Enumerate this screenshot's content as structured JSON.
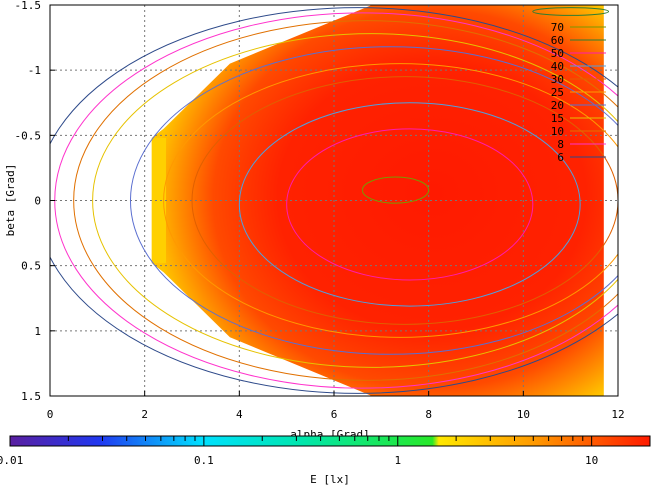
{
  "chart_data": {
    "type": "heatmap",
    "title": "",
    "xlabel": "alpha [Grad]",
    "ylabel": "beta [Grad]",
    "xlim": [
      0,
      12
    ],
    "ylim": [
      -1.5,
      1.5
    ],
    "y_inverted": true,
    "x_ticks": [
      "0",
      "2",
      "4",
      "6",
      "8",
      "10",
      "12"
    ],
    "y_ticks": [
      "-1.5",
      "-1",
      "-0.5",
      "0",
      "0.5",
      "1",
      "1.5"
    ],
    "grid": true,
    "legend_placement": "top-right",
    "contours": [
      {
        "level": "70",
        "color": "#7a9a00",
        "center": [
          7.3,
          -0.08
        ],
        "rx": 0.7,
        "ry": 0.1
      },
      {
        "level": "60",
        "color": "#2e7d32",
        "center": [
          11,
          -1.45
        ],
        "rx": 0.8,
        "ry": 0.03
      },
      {
        "level": "50",
        "color": "#ff1cae",
        "center": [
          7.6,
          0.03
        ],
        "rx": 2.6,
        "ry": 0.58
      },
      {
        "level": "40",
        "color": "#4fa0e0",
        "center": [
          7.6,
          0.03
        ],
        "rx": 3.6,
        "ry": 0.78
      },
      {
        "level": "30",
        "color": "#e06000",
        "center": [
          7.5,
          0.0
        ],
        "rx": 4.5,
        "ry": 0.95
      },
      {
        "level": "25",
        "color": "#ff9900",
        "center": [
          7.4,
          0.0
        ],
        "rx": 5.0,
        "ry": 1.05
      },
      {
        "level": "20",
        "color": "#5b6fd0",
        "center": [
          7.2,
          0.0
        ],
        "rx": 5.5,
        "ry": 1.18
      },
      {
        "level": "15",
        "color": "#e6c200",
        "center": [
          6.8,
          0.0
        ],
        "rx": 5.9,
        "ry": 1.28
      },
      {
        "level": "10",
        "color": "#e07000",
        "center": [
          6.7,
          0.0
        ],
        "rx": 6.2,
        "ry": 1.38
      },
      {
        "level": "8",
        "color": "#ff33cc",
        "center": [
          6.6,
          0.0
        ],
        "rx": 6.5,
        "ry": 1.44
      },
      {
        "level": "6",
        "color": "#2e4a8a",
        "center": [
          6.5,
          0.0
        ],
        "rx": 6.8,
        "ry": 1.48
      }
    ],
    "colorbar": {
      "label": "E [lx]",
      "scale": "log",
      "range": [
        0.01,
        20
      ],
      "tick_labels": [
        "0.01",
        "0.1",
        "1",
        "10"
      ]
    }
  }
}
